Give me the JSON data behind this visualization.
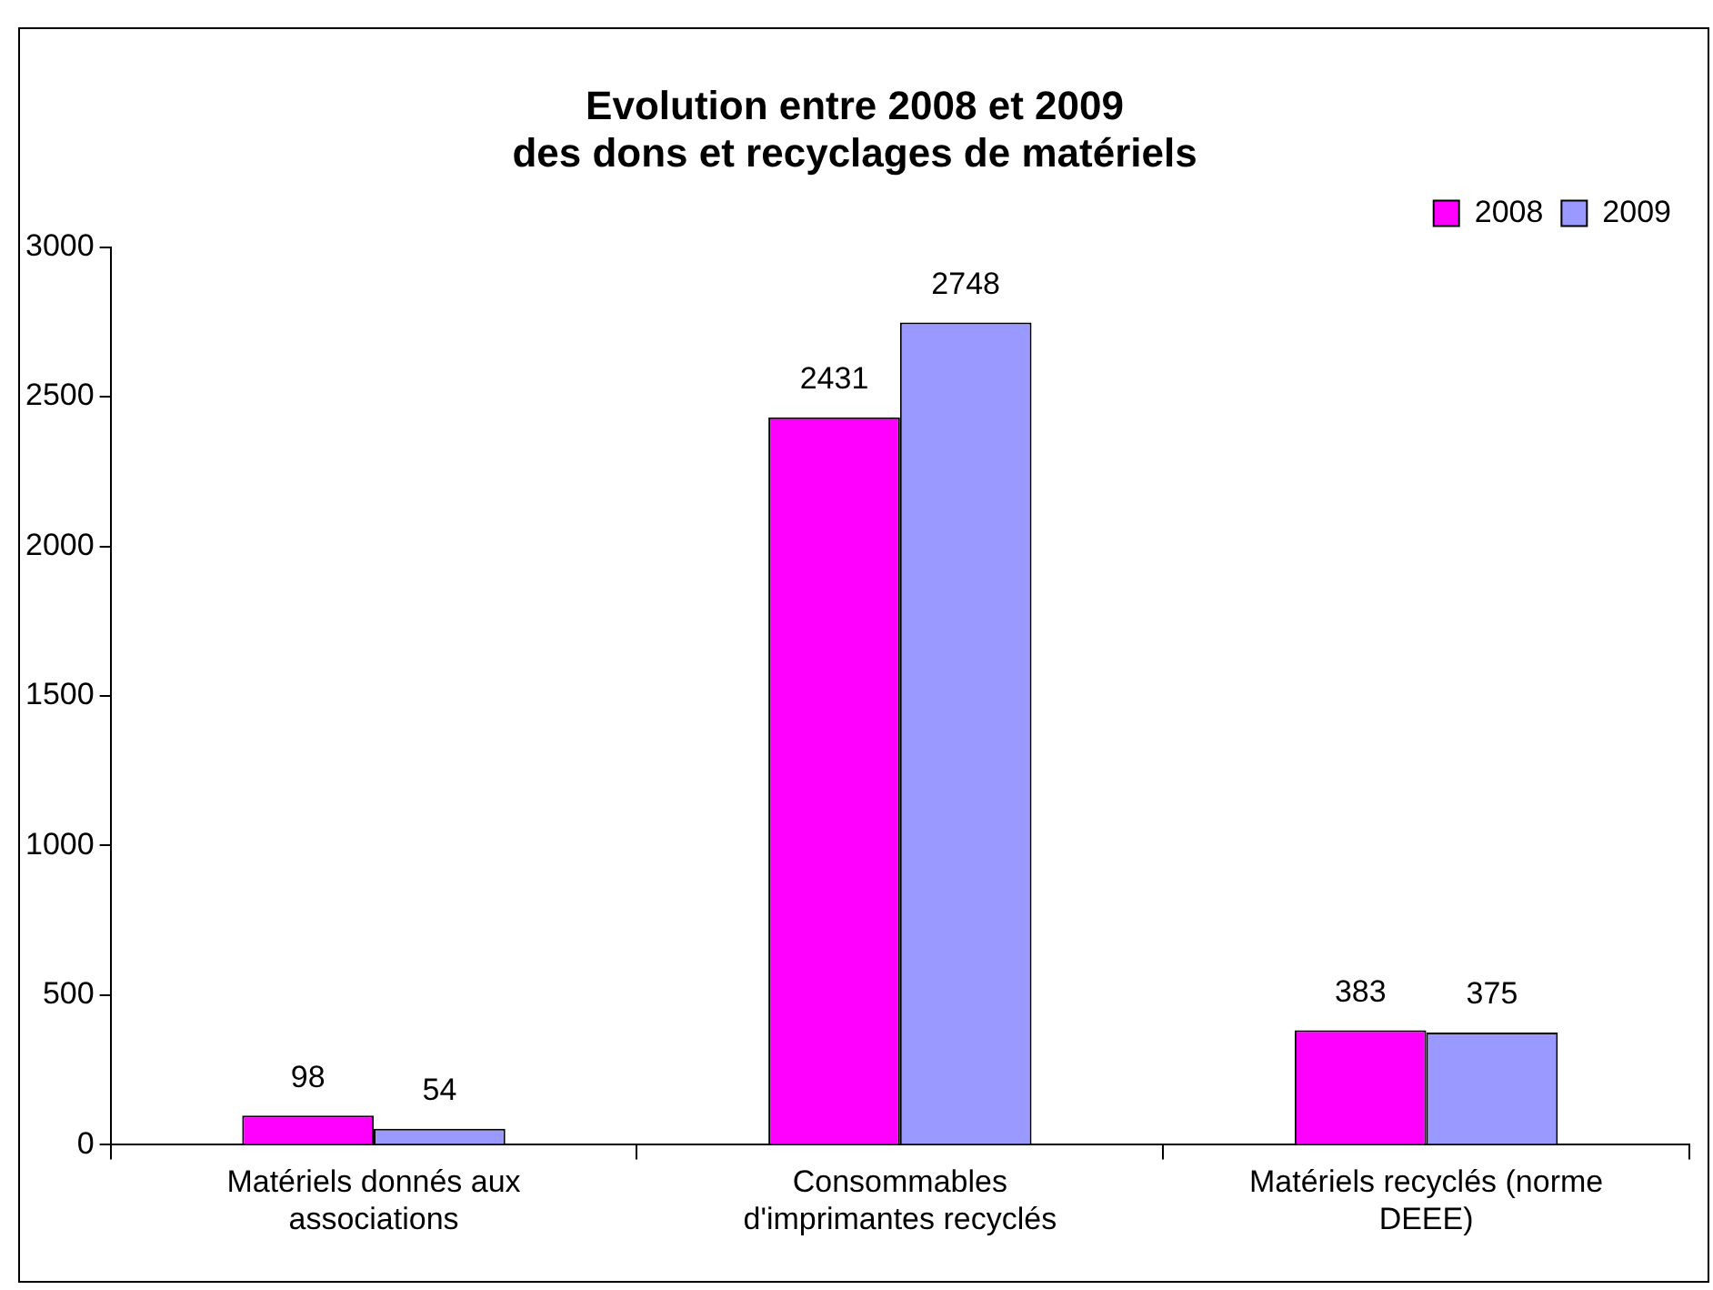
{
  "chart_data": {
    "type": "bar",
    "title": "Evolution entre 2008 et 2009\ndes dons et recyclages de matériels",
    "categories": [
      "Matériels donnés aux associations",
      "Consommables d'imprimantes recyclés",
      "Matériels recyclés (norme DEEE)"
    ],
    "series": [
      {
        "name": "2008",
        "color": "#ff00ff",
        "values": [
          98,
          2431,
          383
        ]
      },
      {
        "name": "2009",
        "color": "#9999ff",
        "values": [
          54,
          2748,
          375
        ]
      }
    ],
    "ylim": [
      0,
      3000
    ],
    "yticks": [
      0,
      500,
      1000,
      1500,
      2000,
      2500,
      3000
    ],
    "grid": false,
    "legend": "top right",
    "data_labels": true
  }
}
